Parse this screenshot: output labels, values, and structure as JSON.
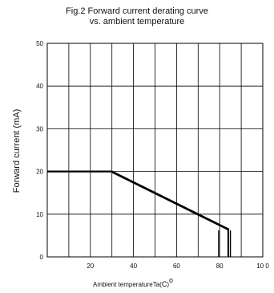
{
  "chart_data": {
    "type": "line",
    "title_lines": [
      "Fig.2 Forward current derating curve",
      "vs. ambient temperature"
    ],
    "xlabel": "Ambient temperatureTa(",
    "xlabel_unit_c": "C",
    "xlabel_suffix": ")",
    "xlabel_degree": "o",
    "ylabel": "Forward current (mA)",
    "xlim": [
      0,
      100
    ],
    "ylim": [
      0,
      50
    ],
    "xticks": [
      20,
      40,
      60,
      80,
      100
    ],
    "xtick_labels": [
      "20",
      "40",
      "60",
      "80",
      "10 0"
    ],
    "yticks": [
      0,
      10,
      20,
      30,
      40,
      50
    ],
    "ytick_labels": [
      "0",
      "10",
      "20",
      "30",
      "40",
      "50"
    ],
    "x_grid_values": [
      10,
      20,
      30,
      40,
      50,
      60,
      70,
      80,
      90
    ],
    "y_grid_values": [
      10,
      20,
      30,
      40
    ],
    "grid": true,
    "colors": {
      "line": "#000000",
      "grid": "#000000",
      "frame": "#000000"
    },
    "series": [
      {
        "x": [
          0,
          30,
          84,
          84
        ],
        "y": [
          20,
          20,
          6.5,
          0
        ]
      },
      {
        "x": [
          30,
          84
        ],
        "y": [
          20,
          6.5
        ]
      }
    ],
    "annotations": [
      {
        "type": "vertical-drop",
        "x": 79.5,
        "y": [
          0,
          6.2
        ]
      },
      {
        "type": "vertical-drop",
        "x": 85,
        "y": [
          0,
          6.2
        ]
      }
    ]
  }
}
